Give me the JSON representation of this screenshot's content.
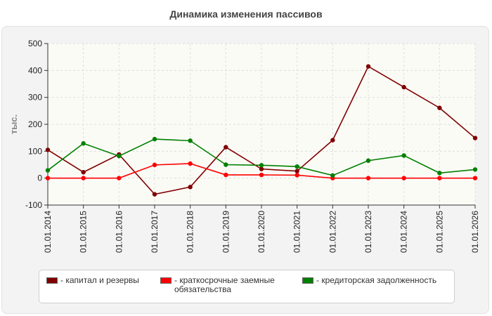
{
  "chart_data": {
    "type": "line",
    "title": "Динамика изменения пассивов",
    "ylabel": "тыс.",
    "ylim": [
      -100,
      500
    ],
    "yticks": [
      -100,
      0,
      100,
      200,
      300,
      400,
      500
    ],
    "grid": true,
    "legend_position": "bottom",
    "categories": [
      "01.01.2014",
      "01.01.2015",
      "01.01.2016",
      "01.01.2017",
      "01.01.2018",
      "01.01.2019",
      "01.01.2020",
      "01.01.2021",
      "01.01.2022",
      "01.01.2023",
      "01.01.2024",
      "01.01.2025",
      "01.01.2026"
    ],
    "series": [
      {
        "name": "капитал и резервы",
        "color": "#800000",
        "values": [
          105,
          22,
          88,
          -60,
          -33,
          115,
          34,
          26,
          141,
          415,
          338,
          261,
          149
        ]
      },
      {
        "name": "краткосрочные заемные обязательства",
        "color": "#ff0000",
        "values": [
          0,
          0,
          0,
          49,
          54,
          12,
          12,
          11,
          0,
          0,
          0,
          0,
          0
        ]
      },
      {
        "name": "кредиторская задолженность",
        "color": "#008000",
        "values": [
          29,
          129,
          82,
          145,
          139,
          50,
          48,
          43,
          10,
          65,
          84,
          19,
          32
        ]
      }
    ]
  },
  "legend": {
    "items": [
      {
        "label": "- капитал и резервы",
        "color": "#800000"
      },
      {
        "label": "- краткосрочные заемные\nобязательства",
        "color": "#ff0000"
      },
      {
        "label": "- кредиторская задолженность",
        "color": "#008000"
      }
    ]
  }
}
